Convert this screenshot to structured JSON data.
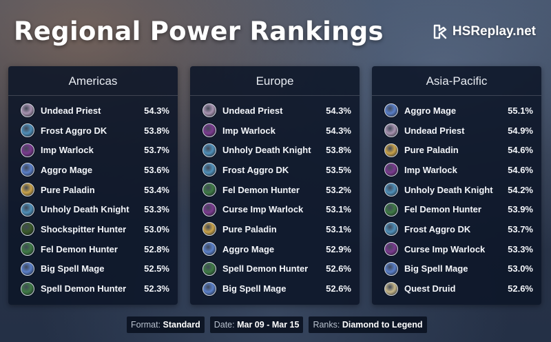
{
  "header": {
    "title": "Regional Power Rankings",
    "brand": "HSReplay.net",
    "brand_icon": "hsreplay-logo"
  },
  "class_colors": {
    "priest": "#a893b0",
    "dk": "#4f8fb8",
    "warlock": "#7b3a8f",
    "mage": "#5a7fc8",
    "paladin": "#c9a24a",
    "hunter": "#3b5a2a",
    "demonhunter": "#3f7a45",
    "druid": "#c8b88a"
  },
  "panels": [
    {
      "region": "Americas",
      "rows": [
        {
          "name": "Undead Priest",
          "winrate": "54.3%",
          "class": "priest"
        },
        {
          "name": "Frost Aggro DK",
          "winrate": "53.8%",
          "class": "dk"
        },
        {
          "name": "Imp Warlock",
          "winrate": "53.7%",
          "class": "warlock"
        },
        {
          "name": "Aggro Mage",
          "winrate": "53.6%",
          "class": "mage"
        },
        {
          "name": "Pure Paladin",
          "winrate": "53.4%",
          "class": "paladin"
        },
        {
          "name": "Unholy Death Knight",
          "winrate": "53.3%",
          "class": "dk"
        },
        {
          "name": "Shockspitter Hunter",
          "winrate": "53.0%",
          "class": "hunter"
        },
        {
          "name": "Fel Demon Hunter",
          "winrate": "52.8%",
          "class": "demonhunter"
        },
        {
          "name": "Big Spell Mage",
          "winrate": "52.5%",
          "class": "mage"
        },
        {
          "name": "Spell Demon Hunter",
          "winrate": "52.3%",
          "class": "demonhunter"
        }
      ]
    },
    {
      "region": "Europe",
      "rows": [
        {
          "name": "Undead Priest",
          "winrate": "54.3%",
          "class": "priest"
        },
        {
          "name": "Imp Warlock",
          "winrate": "54.3%",
          "class": "warlock"
        },
        {
          "name": "Unholy Death Knight",
          "winrate": "53.8%",
          "class": "dk"
        },
        {
          "name": "Frost Aggro DK",
          "winrate": "53.5%",
          "class": "dk"
        },
        {
          "name": "Fel Demon Hunter",
          "winrate": "53.2%",
          "class": "demonhunter"
        },
        {
          "name": "Curse Imp Warlock",
          "winrate": "53.1%",
          "class": "warlock"
        },
        {
          "name": "Pure Paladin",
          "winrate": "53.1%",
          "class": "paladin"
        },
        {
          "name": "Aggro Mage",
          "winrate": "52.9%",
          "class": "mage"
        },
        {
          "name": "Spell Demon Hunter",
          "winrate": "52.6%",
          "class": "demonhunter"
        },
        {
          "name": "Big Spell Mage",
          "winrate": "52.6%",
          "class": "mage"
        }
      ]
    },
    {
      "region": "Asia-Pacific",
      "rows": [
        {
          "name": "Aggro Mage",
          "winrate": "55.1%",
          "class": "mage"
        },
        {
          "name": "Undead Priest",
          "winrate": "54.9%",
          "class": "priest"
        },
        {
          "name": "Pure Paladin",
          "winrate": "54.6%",
          "class": "paladin"
        },
        {
          "name": "Imp Warlock",
          "winrate": "54.6%",
          "class": "warlock"
        },
        {
          "name": "Unholy Death Knight",
          "winrate": "54.2%",
          "class": "dk"
        },
        {
          "name": "Fel Demon Hunter",
          "winrate": "53.9%",
          "class": "demonhunter"
        },
        {
          "name": "Frost Aggro DK",
          "winrate": "53.7%",
          "class": "dk"
        },
        {
          "name": "Curse Imp Warlock",
          "winrate": "53.3%",
          "class": "warlock"
        },
        {
          "name": "Big Spell Mage",
          "winrate": "53.0%",
          "class": "mage"
        },
        {
          "name": "Quest Druid",
          "winrate": "52.6%",
          "class": "druid"
        }
      ]
    }
  ],
  "footer": {
    "format_label": "Format:",
    "format_value": "Standard",
    "date_label": "Date:",
    "date_value": "Mar 09 - Mar 15",
    "ranks_label": "Ranks:",
    "ranks_value": "Diamond to Legend"
  }
}
